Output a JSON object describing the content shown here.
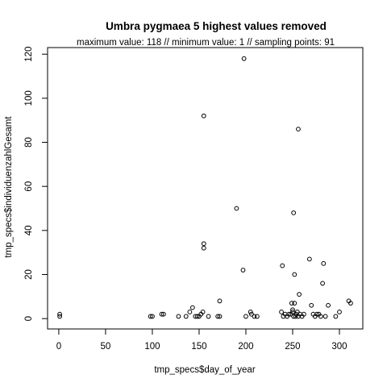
{
  "chart_data": {
    "type": "scatter",
    "title": "Umbra pygmaea  5 highest values removed",
    "subtitle": "maximum value: 118  //  minimum value: 1  // sampling points: 91",
    "xlabel": "tmp_specs$day_of_year",
    "ylabel": "tmp_specs$individuenzahlGesamt",
    "xlim": [
      -12,
      325
    ],
    "ylim": [
      -4.7,
      123
    ],
    "xticks": [
      0,
      50,
      100,
      150,
      200,
      250,
      300
    ],
    "yticks": [
      0,
      20,
      40,
      60,
      80,
      100,
      120
    ],
    "marker": "open-circle",
    "points": [
      {
        "x": 1,
        "y": 2
      },
      {
        "x": 1,
        "y": 1
      },
      {
        "x": 98,
        "y": 1
      },
      {
        "x": 100,
        "y": 1
      },
      {
        "x": 110,
        "y": 2
      },
      {
        "x": 112,
        "y": 2
      },
      {
        "x": 128,
        "y": 1
      },
      {
        "x": 136,
        "y": 1
      },
      {
        "x": 140,
        "y": 3
      },
      {
        "x": 143,
        "y": 5
      },
      {
        "x": 146,
        "y": 1
      },
      {
        "x": 148,
        "y": 1
      },
      {
        "x": 150,
        "y": 1
      },
      {
        "x": 152,
        "y": 2
      },
      {
        "x": 154,
        "y": 3
      },
      {
        "x": 155,
        "y": 32
      },
      {
        "x": 155,
        "y": 34
      },
      {
        "x": 155,
        "y": 92
      },
      {
        "x": 160,
        "y": 1
      },
      {
        "x": 170,
        "y": 1
      },
      {
        "x": 172,
        "y": 1
      },
      {
        "x": 172,
        "y": 8
      },
      {
        "x": 190,
        "y": 50
      },
      {
        "x": 197,
        "y": 22
      },
      {
        "x": 198,
        "y": 118
      },
      {
        "x": 200,
        "y": 1
      },
      {
        "x": 205,
        "y": 3
      },
      {
        "x": 206,
        "y": 2
      },
      {
        "x": 209,
        "y": 1
      },
      {
        "x": 212,
        "y": 1
      },
      {
        "x": 238,
        "y": 3
      },
      {
        "x": 239,
        "y": 24
      },
      {
        "x": 240,
        "y": 1
      },
      {
        "x": 242,
        "y": 2
      },
      {
        "x": 244,
        "y": 1
      },
      {
        "x": 246,
        "y": 2
      },
      {
        "x": 248,
        "y": 2
      },
      {
        "x": 249,
        "y": 7
      },
      {
        "x": 250,
        "y": 3
      },
      {
        "x": 250,
        "y": 4
      },
      {
        "x": 251,
        "y": 1
      },
      {
        "x": 251,
        "y": 48
      },
      {
        "x": 252,
        "y": 7
      },
      {
        "x": 252,
        "y": 20
      },
      {
        "x": 253,
        "y": 1
      },
      {
        "x": 254,
        "y": 2
      },
      {
        "x": 255,
        "y": 3
      },
      {
        "x": 256,
        "y": 1
      },
      {
        "x": 256,
        "y": 86
      },
      {
        "x": 257,
        "y": 11
      },
      {
        "x": 258,
        "y": 2
      },
      {
        "x": 260,
        "y": 1
      },
      {
        "x": 262,
        "y": 2
      },
      {
        "x": 268,
        "y": 27
      },
      {
        "x": 270,
        "y": 6
      },
      {
        "x": 272,
        "y": 2
      },
      {
        "x": 274,
        "y": 1
      },
      {
        "x": 276,
        "y": 2
      },
      {
        "x": 278,
        "y": 2
      },
      {
        "x": 280,
        "y": 1
      },
      {
        "x": 282,
        "y": 16
      },
      {
        "x": 283,
        "y": 25
      },
      {
        "x": 285,
        "y": 1
      },
      {
        "x": 288,
        "y": 6
      },
      {
        "x": 296,
        "y": 1
      },
      {
        "x": 300,
        "y": 3
      },
      {
        "x": 310,
        "y": 8
      },
      {
        "x": 312,
        "y": 7
      }
    ]
  }
}
